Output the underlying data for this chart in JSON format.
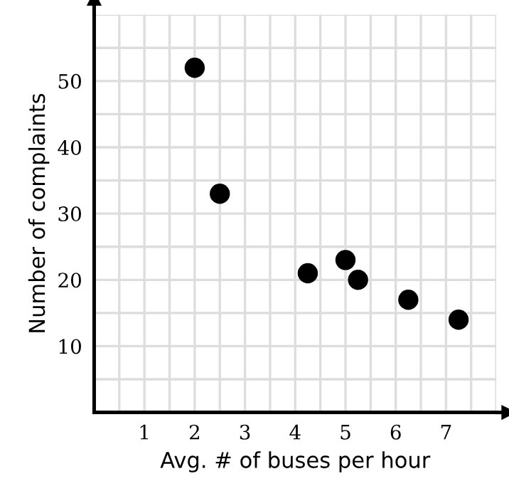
{
  "chart_data": {
    "type": "scatter",
    "xlabel": "Avg. # of buses per hour",
    "ylabel": "Number of complaints",
    "x": [
      2,
      2.5,
      4.25,
      5,
      5.25,
      6.25,
      7.25
    ],
    "series": [
      {
        "color": "#000000",
        "values": [
          52,
          33,
          21,
          23,
          20,
          17,
          14
        ]
      }
    ],
    "marker": "circle",
    "xlim": [
      0,
      8
    ],
    "xticks": [
      {
        "value": 0.5,
        "label": null
      },
      1,
      {
        "value": 1.5,
        "label": null
      },
      2,
      {
        "value": 2.5,
        "label": null
      },
      3,
      {
        "value": 3.5,
        "label": null
      },
      4,
      {
        "value": 4.5,
        "label": null
      },
      5,
      {
        "value": 5.5,
        "label": null
      },
      6,
      {
        "value": 6.5,
        "label": null
      },
      7,
      {
        "value": 7.5,
        "label": null
      },
      {
        "value": 8,
        "label": null
      }
    ],
    "ylim": [
      0,
      60
    ],
    "yticks": [
      {
        "value": 5,
        "label": null
      },
      10,
      {
        "value": 15,
        "label": null
      },
      20,
      {
        "value": 25,
        "label": null
      },
      30,
      {
        "value": 35,
        "label": null
      },
      40,
      {
        "value": 45,
        "label": null
      },
      50,
      {
        "value": 55,
        "label": null
      },
      {
        "value": 60,
        "label": null
      }
    ],
    "grid": true,
    "legend": false
  }
}
